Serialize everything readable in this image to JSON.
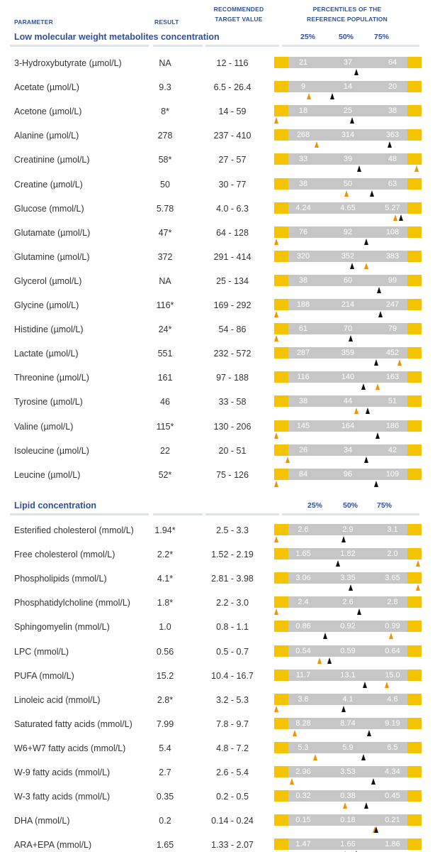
{
  "headers": {
    "parameter": "PARAMETER",
    "result": "RESULT",
    "target_line1": "RECOMMENDED",
    "target_line2": "TARGET VALUE",
    "percentiles_line1": "PERCENTILES OF THE",
    "percentiles_line2": "REFERENCE POPULATION"
  },
  "colors": {
    "accent": "#2f4fa3",
    "gauge_outer": "#f5c400",
    "gauge_inner": "#c6c6c6",
    "marker_black": "#111111",
    "marker_orange": "#f39200"
  },
  "sections": [
    {
      "title": "Low molecular weight metabolites concentration",
      "percentile_labels": [
        "25%",
        "50%",
        "75%"
      ],
      "rows": [
        {
          "name": "3-Hydroxybutyrate (µmol/L)",
          "result": "NA",
          "target": "12 - 116",
          "ticks": [
            "21",
            "37",
            "64"
          ],
          "markers": [
            {
              "pos": 0.56,
              "color": "black"
            }
          ]
        },
        {
          "name": "Acetate (µmol/L)",
          "result": "9.3",
          "target": "6.5 - 26.4",
          "ticks": [
            "9",
            "14",
            "20"
          ],
          "markers": [
            {
              "pos": 0.23,
              "color": "orange"
            },
            {
              "pos": 0.39,
              "color": "black"
            }
          ]
        },
        {
          "name": "Acetone (µmol/L)",
          "result": "8*",
          "target": "14 - 59",
          "ticks": [
            "18",
            "25",
            "38"
          ],
          "markers": [
            {
              "pos": 0.0,
              "color": "orange"
            },
            {
              "pos": 0.53,
              "color": "black"
            }
          ]
        },
        {
          "name": "Alanine (µmol/L)",
          "result": "278",
          "target": "237 - 410",
          "ticks": [
            "268",
            "314",
            "363"
          ],
          "markers": [
            {
              "pos": 0.28,
              "color": "orange"
            },
            {
              "pos": 0.79,
              "color": "black"
            }
          ]
        },
        {
          "name": "Creatinine (µmol/L)",
          "result": "58*",
          "target": "27 - 57",
          "ticks": [
            "33",
            "39",
            "48"
          ],
          "markers": [
            {
              "pos": 0.58,
              "color": "black"
            },
            {
              "pos": 0.98,
              "color": "orange"
            }
          ]
        },
        {
          "name": "Creatine (µmol/L)",
          "result": "50",
          "target": "30 - 77",
          "ticks": [
            "38",
            "50",
            "63"
          ],
          "markers": [
            {
              "pos": 0.49,
              "color": "orange"
            },
            {
              "pos": 0.67,
              "color": "black"
            }
          ]
        },
        {
          "name": "Glucose (mmol/L)",
          "result": "5.78",
          "target": "4.0 - 6.3",
          "ticks": [
            "4.24",
            "4.65",
            "5.27"
          ],
          "markers": [
            {
              "pos": 0.83,
              "color": "orange"
            },
            {
              "pos": 0.87,
              "color": "black"
            }
          ]
        },
        {
          "name": "Glutamate (µmol/L)",
          "result": "47*",
          "target": "64 - 128",
          "ticks": [
            "76",
            "92",
            "108"
          ],
          "markers": [
            {
              "pos": 0.0,
              "color": "orange"
            },
            {
              "pos": 0.63,
              "color": "black"
            }
          ]
        },
        {
          "name": "Glutamine (µmol/L)",
          "result": "372",
          "target": "291 - 414",
          "ticks": [
            "320",
            "352",
            "383"
          ],
          "markers": [
            {
              "pos": 0.53,
              "color": "black"
            },
            {
              "pos": 0.63,
              "color": "orange"
            }
          ]
        },
        {
          "name": "Glycerol (µmol/L)",
          "result": "NA",
          "target": "25 - 134",
          "ticks": [
            "38",
            "60",
            "99"
          ],
          "markers": [
            {
              "pos": 0.72,
              "color": "black"
            }
          ]
        },
        {
          "name": "Glycine (µmol/L)",
          "result": "116*",
          "target": "169 - 292",
          "ticks": [
            "188",
            "214",
            "247"
          ],
          "markers": [
            {
              "pos": 0.0,
              "color": "orange"
            },
            {
              "pos": 0.73,
              "color": "black"
            }
          ]
        },
        {
          "name": "Histidine (µmol/L)",
          "result": "24*",
          "target": "54 - 86",
          "ticks": [
            "61",
            "70",
            "79"
          ],
          "markers": [
            {
              "pos": 0.0,
              "color": "orange"
            },
            {
              "pos": 0.52,
              "color": "black"
            }
          ]
        },
        {
          "name": "Lactate (µmol/L)",
          "result": "551",
          "target": "232 - 572",
          "ticks": [
            "287",
            "359",
            "452"
          ],
          "markers": [
            {
              "pos": 0.7,
              "color": "black"
            },
            {
              "pos": 0.86,
              "color": "orange"
            }
          ]
        },
        {
          "name": "Threonine (µmol/L)",
          "result": "161",
          "target": "97 - 188",
          "ticks": [
            "116",
            "140",
            "163"
          ],
          "markers": [
            {
              "pos": 0.61,
              "color": "black"
            },
            {
              "pos": 0.71,
              "color": "orange"
            }
          ]
        },
        {
          "name": "Tyrosine (µmol/L)",
          "result": "46",
          "target": "33 - 58",
          "ticks": [
            "38",
            "44",
            "51"
          ],
          "markers": [
            {
              "pos": 0.56,
              "color": "orange"
            },
            {
              "pos": 0.64,
              "color": "black"
            }
          ]
        },
        {
          "name": "Valine (µmol/L)",
          "result": "115*",
          "target": "130 - 206",
          "ticks": [
            "145",
            "164",
            "186"
          ],
          "markers": [
            {
              "pos": 0.0,
              "color": "orange"
            },
            {
              "pos": 0.71,
              "color": "black"
            }
          ]
        },
        {
          "name": "Isoleucine (µmol/L)",
          "result": "22",
          "target": "20 - 51",
          "ticks": [
            "26",
            "34",
            "42"
          ],
          "markers": [
            {
              "pos": 0.08,
              "color": "orange"
            },
            {
              "pos": 0.63,
              "color": "black"
            }
          ]
        },
        {
          "name": "Leucine (µmol/L)",
          "result": "52*",
          "target": "75 - 126",
          "ticks": [
            "84",
            "96",
            "109"
          ],
          "markers": [
            {
              "pos": 0.0,
              "color": "orange"
            },
            {
              "pos": 0.7,
              "color": "black"
            }
          ]
        }
      ]
    },
    {
      "title": "Lipid concentration",
      "percentile_labels": [
        "25%",
        "50%",
        "75%"
      ],
      "rows": [
        {
          "name": "Esterified cholesterol (mmol/L)",
          "result": "1.94*",
          "target": "2.5 - 3.3",
          "ticks": [
            "2.6",
            "2.9",
            "3.1"
          ],
          "markers": [
            {
              "pos": 0.0,
              "color": "orange"
            },
            {
              "pos": 0.47,
              "color": "black"
            }
          ]
        },
        {
          "name": "Free cholesterol (mmol/L)",
          "result": "2.2*",
          "target": "1.52 - 2.19",
          "ticks": [
            "1.65",
            "1.82",
            "2.0"
          ],
          "markers": [
            {
              "pos": 0.43,
              "color": "black"
            },
            {
              "pos": 0.99,
              "color": "orange"
            }
          ]
        },
        {
          "name": "Phospholipids (mmol/L)",
          "result": "4.1*",
          "target": "2.81 - 3.98",
          "ticks": [
            "3.06",
            "3.35",
            "3.65"
          ],
          "markers": [
            {
              "pos": 0.52,
              "color": "black"
            },
            {
              "pos": 0.99,
              "color": "orange"
            }
          ]
        },
        {
          "name": "Phosphatidylcholine (mmol/L)",
          "result": "1.8*",
          "target": "2.2 - 3.0",
          "ticks": [
            "2.4",
            "2.6",
            "2.8"
          ],
          "markers": [
            {
              "pos": 0.0,
              "color": "orange"
            },
            {
              "pos": 0.58,
              "color": "black"
            }
          ]
        },
        {
          "name": "Sphingomyelin (mmol/L)",
          "result": "1.0",
          "target": "0.8 - 1.1",
          "ticks": [
            "0.86",
            "0.92",
            "0.99"
          ],
          "markers": [
            {
              "pos": 0.34,
              "color": "black"
            },
            {
              "pos": 0.8,
              "color": "orange"
            }
          ]
        },
        {
          "name": "LPC (mmol/L)",
          "result": "0.56",
          "target": "0.5 - 0.7",
          "ticks": [
            "0.54",
            "0.59",
            "0.64"
          ],
          "markers": [
            {
              "pos": 0.3,
              "color": "orange"
            },
            {
              "pos": 0.37,
              "color": "black"
            }
          ]
        },
        {
          "name": "PUFA (mmol/L)",
          "result": "15.2",
          "target": "10.4 - 16.7",
          "ticks": [
            "11.7",
            "13.1",
            "15.0"
          ],
          "markers": [
            {
              "pos": 0.62,
              "color": "black"
            },
            {
              "pos": 0.77,
              "color": "orange"
            }
          ]
        },
        {
          "name": "Linoleic acid (mmol/L)",
          "result": "2.8*",
          "target": "3.2 - 5.3",
          "ticks": [
            "3.6",
            "4.1",
            "4.6"
          ],
          "markers": [
            {
              "pos": 0.0,
              "color": "orange"
            },
            {
              "pos": 0.47,
              "color": "black"
            }
          ]
        },
        {
          "name": "Saturated fatty acids (mmol/L)",
          "result": "7.99",
          "target": "7.8 - 9.7",
          "ticks": [
            "8.28",
            "8.74",
            "9.19"
          ],
          "markers": [
            {
              "pos": 0.13,
              "color": "orange"
            },
            {
              "pos": 0.65,
              "color": "black"
            }
          ]
        },
        {
          "name": "W6+W7 fatty acids (mmol/L)",
          "result": "5.4",
          "target": "4.8 - 7.2",
          "ticks": [
            "5.3",
            "5.9",
            "6.5"
          ],
          "markers": [
            {
              "pos": 0.27,
              "color": "orange"
            },
            {
              "pos": 0.61,
              "color": "black"
            }
          ]
        },
        {
          "name": "W-9 fatty acids (mmol/L)",
          "result": "2.7",
          "target": "2.6 - 5.4",
          "ticks": [
            "2.96",
            "3.53",
            "4.34"
          ],
          "markers": [
            {
              "pos": 0.11,
              "color": "orange"
            },
            {
              "pos": 0.68,
              "color": "black"
            }
          ]
        },
        {
          "name": "W-3 fatty acids (mmol/L)",
          "result": "0.35",
          "target": "0.2 - 0.5",
          "ticks": [
            "0.32",
            "0.38",
            "0.45"
          ],
          "markers": [
            {
              "pos": 0.48,
              "color": "orange"
            },
            {
              "pos": 0.63,
              "color": "black"
            }
          ]
        },
        {
          "name": "DHA (mmol/L)",
          "result": "0.2",
          "target": "0.14 - 0.24",
          "ticks": [
            "0.15",
            "0.18",
            "0.21"
          ],
          "markers": [
            {
              "pos": 0.69,
              "color": "orange"
            },
            {
              "pos": 0.7,
              "color": "black"
            }
          ]
        },
        {
          "name": "ARA+EPA (mmol/L)",
          "result": "1.65",
          "target": "1.33 - 2.07",
          "ticks": [
            "1.47",
            "1.66",
            "1.86"
          ],
          "markers": [
            {
              "pos": 0.48,
              "color": "orange"
            },
            {
              "pos": 0.56,
              "color": "black"
            }
          ]
        }
      ]
    }
  ]
}
